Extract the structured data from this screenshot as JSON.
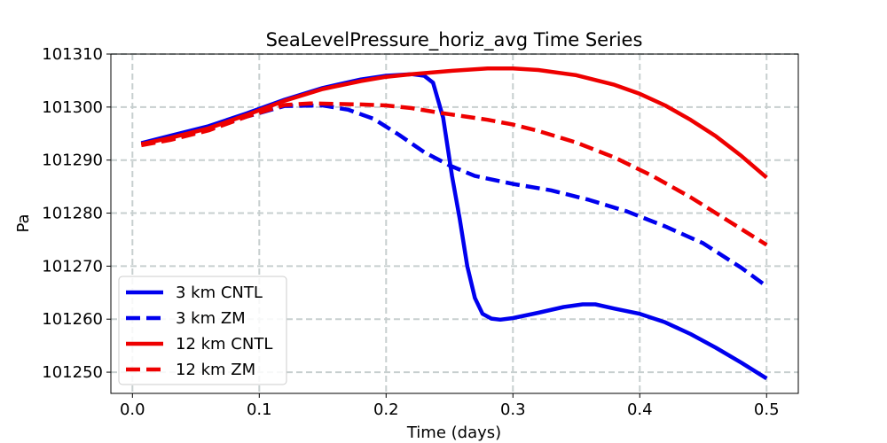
{
  "chart_data": {
    "type": "line",
    "title": "SeaLevelPressure_horiz_avg Time Series",
    "xlabel": "Time (days)",
    "ylabel": "Pa",
    "xlim": [
      -0.017,
      0.525
    ],
    "ylim": [
      101246,
      101310
    ],
    "x_ticks": [
      0.0,
      0.1,
      0.2,
      0.3,
      0.4,
      0.5
    ],
    "x_tick_labels": [
      "0.0",
      "0.1",
      "0.2",
      "0.3",
      "0.4",
      "0.5"
    ],
    "y_ticks": [
      101250,
      101260,
      101270,
      101280,
      101290,
      101300,
      101310
    ],
    "y_tick_labels": [
      "101250",
      "101260",
      "101270",
      "101280",
      "101290",
      "101300",
      "101310"
    ],
    "grid": true,
    "legend_position": "lower-left",
    "series": [
      {
        "name": "3 km CNTL",
        "color": "#0000ee",
        "style": "solid",
        "x": [
          0.007,
          0.03,
          0.06,
          0.09,
          0.12,
          0.15,
          0.18,
          0.2,
          0.22,
          0.23,
          0.237,
          0.245,
          0.252,
          0.258,
          0.264,
          0.27,
          0.276,
          0.283,
          0.29,
          0.3,
          0.32,
          0.34,
          0.355,
          0.365,
          0.38,
          0.4,
          0.42,
          0.44,
          0.46,
          0.48,
          0.5
        ],
        "y": [
          101293.2,
          101294.6,
          101296.4,
          101298.8,
          101301.4,
          101303.6,
          101305.2,
          101305.9,
          101306.2,
          101305.9,
          101304.6,
          101298.0,
          101287.0,
          101279.0,
          101270.0,
          101264.0,
          101261.0,
          101260.1,
          101259.9,
          101260.2,
          101261.2,
          101262.3,
          101262.8,
          101262.8,
          101262.0,
          101261.0,
          101259.4,
          101257.2,
          101254.6,
          101251.8,
          101248.8
        ]
      },
      {
        "name": "3 km ZM",
        "color": "#0000ee",
        "style": "dashed",
        "x": [
          0.007,
          0.03,
          0.06,
          0.09,
          0.12,
          0.15,
          0.17,
          0.19,
          0.21,
          0.23,
          0.25,
          0.27,
          0.3,
          0.33,
          0.36,
          0.39,
          0.42,
          0.45,
          0.48,
          0.5
        ],
        "y": [
          101293.0,
          101294.0,
          101295.8,
          101298.2,
          101300.2,
          101300.3,
          101299.5,
          101297.8,
          101294.8,
          101291.5,
          101289.0,
          101287.0,
          101285.5,
          101284.3,
          101282.5,
          101280.3,
          101277.5,
          101274.3,
          101269.7,
          101266.2
        ]
      },
      {
        "name": "12 km CNTL",
        "color": "#ee0000",
        "style": "solid",
        "x": [
          0.007,
          0.03,
          0.06,
          0.09,
          0.12,
          0.15,
          0.18,
          0.2,
          0.22,
          0.25,
          0.28,
          0.3,
          0.32,
          0.35,
          0.38,
          0.4,
          0.42,
          0.44,
          0.46,
          0.48,
          0.5
        ],
        "y": [
          101293.0,
          101294.2,
          101296.0,
          101298.5,
          101301.2,
          101303.4,
          101304.9,
          101305.7,
          101306.2,
          101306.8,
          101307.3,
          101307.3,
          101307.0,
          101306.0,
          101304.2,
          101302.5,
          101300.3,
          101297.6,
          101294.5,
          101290.8,
          101286.7
        ]
      },
      {
        "name": "12 km ZM",
        "color": "#ee0000",
        "style": "dashed",
        "x": [
          0.007,
          0.03,
          0.06,
          0.09,
          0.12,
          0.14,
          0.16,
          0.18,
          0.2,
          0.22,
          0.24,
          0.26,
          0.28,
          0.3,
          0.32,
          0.35,
          0.38,
          0.41,
          0.44,
          0.47,
          0.5
        ],
        "y": [
          101292.8,
          101293.8,
          101295.6,
          101298.2,
          101300.4,
          101300.7,
          101300.6,
          101300.5,
          101300.3,
          101299.8,
          101299.0,
          101298.3,
          101297.6,
          101296.7,
          101295.5,
          101293.3,
          101290.5,
          101287.0,
          101283.0,
          101278.5,
          101274.0
        ]
      }
    ]
  }
}
